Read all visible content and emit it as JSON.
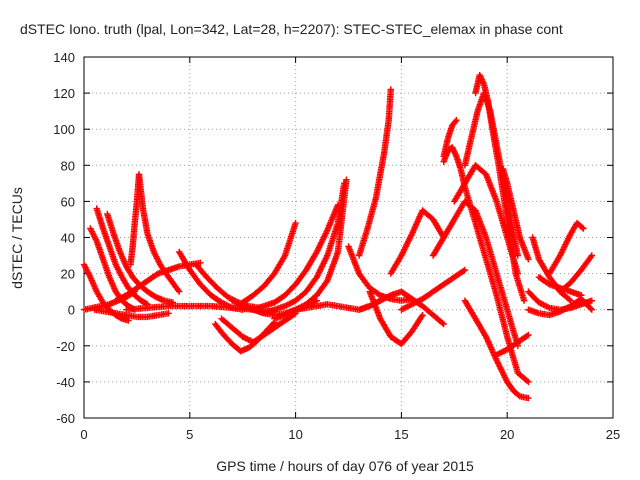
{
  "chart_data": {
    "type": "scatter",
    "title": "dSTEC Iono. truth (lpal, Lon=342, Lat=28, h=2207): STEC-STEC_elemax in phase cont",
    "xlabel": "GPS time / hours of day 076 of year 2015",
    "ylabel": "dSTEC  / TECUs",
    "xlim": [
      0,
      25
    ],
    "ylim": [
      -60,
      140
    ],
    "xticks": [
      0,
      5,
      10,
      15,
      20,
      25
    ],
    "yticks": [
      -60,
      -40,
      -20,
      0,
      20,
      40,
      60,
      80,
      100,
      120,
      140
    ],
    "grid": true,
    "marker": "+",
    "color": "#ff0000",
    "series": [
      {
        "x": [
          0.0,
          0.3,
          0.6,
          0.9,
          1.2,
          1.5,
          1.8,
          2.1
        ],
        "y": [
          25,
          18,
          10,
          4,
          0,
          -3,
          -5,
          -6
        ]
      },
      {
        "x": [
          0.3,
          0.6,
          0.9,
          1.2,
          1.5,
          1.8,
          2.1,
          2.4
        ],
        "y": [
          45,
          38,
          28,
          18,
          10,
          5,
          2,
          0
        ]
      },
      {
        "x": [
          0.6,
          0.9,
          1.2,
          1.5,
          1.8,
          2.1,
          2.4,
          2.7,
          3.0
        ],
        "y": [
          56,
          45,
          35,
          25,
          18,
          12,
          8,
          5,
          3
        ]
      },
      {
        "x": [
          1.1,
          1.4,
          1.7,
          2.0,
          2.3,
          2.6,
          3.0,
          3.4,
          3.8,
          4.2
        ],
        "y": [
          53,
          42,
          32,
          24,
          18,
          14,
          10,
          7,
          5,
          4
        ]
      },
      {
        "x": [
          0.0,
          0.4,
          0.8,
          1.2,
          1.6,
          2.0,
          2.4
        ],
        "y": [
          0,
          1,
          2,
          3,
          5,
          7,
          10
        ]
      },
      {
        "x": [
          2.2,
          2.3,
          2.4,
          2.5,
          2.6,
          2.8,
          3.0,
          3.3,
          3.6,
          4.0,
          4.5
        ],
        "y": [
          25,
          35,
          48,
          60,
          75,
          55,
          42,
          32,
          25,
          18,
          10
        ]
      },
      {
        "x": [
          1.5,
          2.0,
          2.5,
          3.0,
          3.5,
          4.0,
          4.5,
          5.0,
          5.5
        ],
        "y": [
          5,
          8,
          12,
          16,
          20,
          22,
          24,
          25,
          26
        ]
      },
      {
        "x": [
          0.5,
          1.0,
          1.5,
          2.0,
          2.5,
          3.0,
          3.5,
          4.0
        ],
        "y": [
          0,
          -1,
          -2,
          -3,
          -4,
          -4,
          -3,
          -2
        ]
      },
      {
        "x": [
          4.5,
          5.0,
          5.5,
          6.0,
          6.5,
          7.0,
          7.5
        ],
        "y": [
          32,
          22,
          14,
          8,
          4,
          1,
          0
        ]
      },
      {
        "x": [
          5.3,
          5.8,
          6.3,
          6.8,
          7.3,
          7.8,
          8.3
        ],
        "y": [
          25,
          18,
          12,
          7,
          4,
          2,
          1
        ]
      },
      {
        "x": [
          2.0,
          3.0,
          4.0,
          5.0,
          6.0,
          7.0,
          8.0,
          9.0
        ],
        "y": [
          0,
          1,
          2,
          2,
          2,
          1,
          0,
          -1
        ]
      },
      {
        "x": [
          6.2,
          6.6,
          7.0,
          7.4,
          7.8,
          8.2,
          8.6,
          9.0
        ],
        "y": [
          -8,
          -14,
          -19,
          -23,
          -21,
          -17,
          -12,
          -7
        ]
      },
      {
        "x": [
          6.5,
          7.0,
          7.5,
          8.0,
          8.5,
          9.0,
          9.5,
          10.0
        ],
        "y": [
          -5,
          -10,
          -15,
          -18,
          -14,
          -10,
          -6,
          -2
        ]
      },
      {
        "x": [
          7.0,
          7.5,
          8.0,
          8.5,
          9.0,
          9.5,
          10.0,
          10.5,
          11.0
        ],
        "y": [
          5,
          2,
          0,
          -2,
          -3,
          -2,
          0,
          2,
          5
        ]
      },
      {
        "x": [
          7.5,
          8.0,
          8.5,
          9.0,
          9.5,
          10.0
        ],
        "y": [
          4,
          8,
          13,
          20,
          30,
          48
        ]
      },
      {
        "x": [
          8.0,
          8.5,
          9.0,
          9.5,
          10.0,
          10.5,
          11.0,
          11.5,
          12.0
        ],
        "y": [
          0,
          2,
          4,
          8,
          14,
          22,
          32,
          44,
          58
        ]
      },
      {
        "x": [
          8.5,
          9.0,
          9.5,
          10.0,
          10.5,
          11.0,
          11.5,
          12.0,
          12.3
        ],
        "y": [
          -2,
          0,
          2,
          5,
          10,
          18,
          30,
          48,
          70
        ]
      },
      {
        "x": [
          9.0,
          9.5,
          10.0,
          10.5,
          11.0,
          11.5,
          12.0,
          12.4
        ],
        "y": [
          -5,
          -3,
          0,
          3,
          8,
          16,
          32,
          72
        ]
      },
      {
        "x": [
          10.0,
          10.5,
          11.0,
          11.5,
          12.0,
          12.5,
          13.0,
          13.5,
          14.0
        ],
        "y": [
          0,
          1,
          2,
          3,
          2,
          1,
          0,
          2,
          5
        ]
      },
      {
        "x": [
          12.5,
          13.0,
          13.5,
          14.0,
          14.5,
          15.0,
          15.5
        ],
        "y": [
          35,
          20,
          12,
          8,
          6,
          5,
          6
        ]
      },
      {
        "x": [
          13.0,
          13.4,
          13.8,
          14.0,
          14.2,
          14.4,
          14.5
        ],
        "y": [
          30,
          45,
          62,
          75,
          88,
          105,
          122
        ]
      },
      {
        "x": [
          13.5,
          14.0,
          14.5,
          15.0,
          15.5,
          16.0
        ],
        "y": [
          10,
          -5,
          -15,
          -19,
          -12,
          -3
        ]
      },
      {
        "x": [
          14.5,
          15.0,
          15.5,
          16.0,
          16.5,
          17.0
        ],
        "y": [
          20,
          30,
          42,
          55,
          50,
          40
        ]
      },
      {
        "x": [
          13.0,
          13.5,
          14.0,
          14.5,
          15.0,
          15.5,
          16.0,
          16.5,
          17.0
        ],
        "y": [
          0,
          2,
          5,
          8,
          10,
          6,
          2,
          -3,
          -8
        ]
      },
      {
        "x": [
          15.0,
          15.5,
          16.0,
          16.5,
          17.0,
          17.5,
          18.0
        ],
        "y": [
          0,
          3,
          6,
          10,
          14,
          18,
          22
        ]
      },
      {
        "x": [
          17.0,
          17.2,
          17.4,
          17.6,
          17.8,
          18.0,
          18.5,
          19.0,
          19.5,
          20.0,
          20.5,
          21.0
        ],
        "y": [
          82,
          88,
          90,
          85,
          78,
          68,
          48,
          28,
          8,
          -15,
          -35,
          -40
        ]
      },
      {
        "x": [
          17.0,
          17.2,
          17.4,
          17.6
        ],
        "y": [
          85,
          95,
          102,
          105
        ]
      },
      {
        "x": [
          18.5,
          18.7,
          18.9,
          19.1,
          19.3,
          19.6,
          20.0,
          20.4,
          20.8
        ],
        "y": [
          120,
          130,
          125,
          115,
          100,
          80,
          50,
          20,
          5
        ]
      },
      {
        "x": [
          18.0,
          18.3,
          18.6,
          18.9,
          19.2,
          19.6,
          20.0,
          20.5
        ],
        "y": [
          80,
          95,
          110,
          120,
          110,
          85,
          60,
          30
        ]
      },
      {
        "x": [
          17.5,
          18.0,
          18.5,
          19.0,
          19.5,
          20.0,
          20.5
        ],
        "y": [
          60,
          70,
          80,
          75,
          60,
          40,
          20
        ]
      },
      {
        "x": [
          16.5,
          17.0,
          17.5,
          18.0,
          18.5,
          19.0,
          19.5,
          20.0,
          20.5
        ],
        "y": [
          30,
          40,
          50,
          60,
          55,
          40,
          20,
          0,
          -20
        ]
      },
      {
        "x": [
          18.0,
          18.5,
          19.0,
          19.5,
          20.0,
          20.3,
          20.6,
          21.0
        ],
        "y": [
          5,
          -5,
          -15,
          -28,
          -40,
          -45,
          -48,
          -49
        ]
      },
      {
        "x": [
          19.8,
          20.0,
          20.3,
          20.6,
          21.0
        ],
        "y": [
          78,
          70,
          55,
          40,
          28
        ]
      },
      {
        "x": [
          19.5,
          20.0,
          20.5,
          21.0
        ],
        "y": [
          -25,
          -22,
          -18,
          -14
        ]
      },
      {
        "x": [
          21.2,
          21.5,
          22.0,
          22.5,
          23.0
        ],
        "y": [
          40,
          28,
          18,
          10,
          5
        ]
      },
      {
        "x": [
          21.5,
          22.0,
          22.5,
          23.0,
          23.5
        ],
        "y": [
          18,
          14,
          12,
          10,
          8
        ]
      },
      {
        "x": [
          21.0,
          21.5,
          22.0,
          22.5,
          23.0,
          23.5,
          24.0
        ],
        "y": [
          10,
          4,
          1,
          0,
          1,
          3,
          5
        ]
      },
      {
        "x": [
          21.0,
          21.5,
          22.0,
          22.5,
          23.0,
          23.5,
          24.0
        ],
        "y": [
          0,
          -2,
          -3,
          -1,
          2,
          6,
          0
        ]
      },
      {
        "x": [
          22.0,
          22.5,
          23.0,
          23.3,
          23.6
        ],
        "y": [
          20,
          30,
          42,
          48,
          45
        ]
      },
      {
        "x": [
          22.5,
          23.0,
          23.5,
          24.0
        ],
        "y": [
          10,
          15,
          22,
          30
        ]
      }
    ]
  }
}
